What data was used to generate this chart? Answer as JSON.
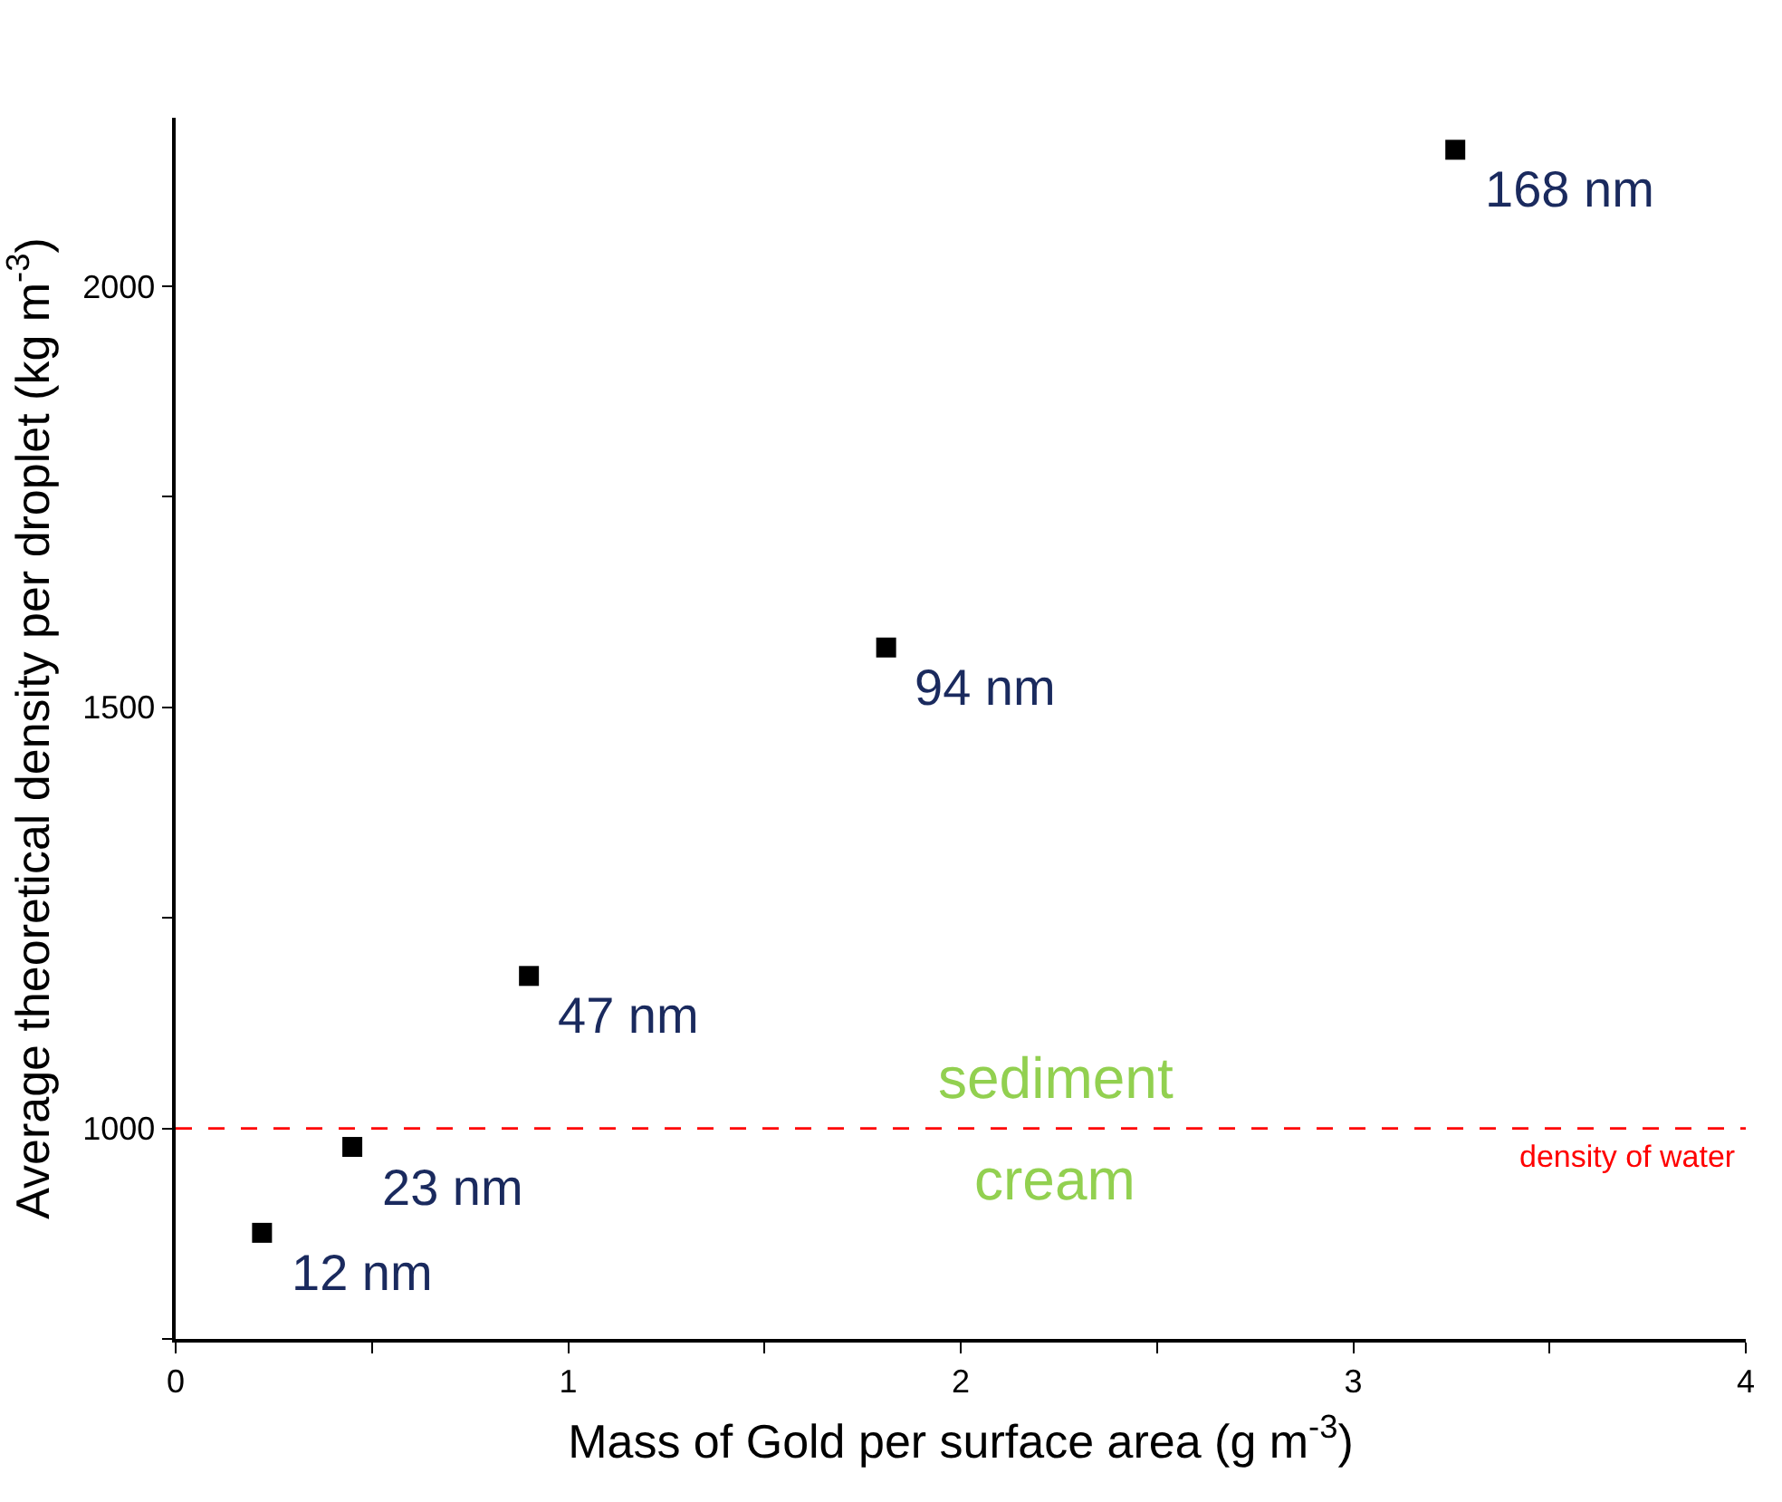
{
  "chart_data": {
    "type": "scatter",
    "xlabel": "Mass of Gold per surface area (g m$^{-3}$)",
    "ylabel": "Average theoretical density per droplet (kg m$^{-3}$)",
    "x": [
      0.22,
      0.45,
      0.9,
      1.81,
      3.26
    ],
    "series": [
      {
        "color": "#000000",
        "values": [
          876,
          978,
          1181,
          1571,
          2162
        ]
      }
    ],
    "marker": "square",
    "xlim": [
      0,
      4
    ],
    "xticks": [
      0,
      {
        "value": 0.5,
        "label": null
      },
      1,
      {
        "value": 1.5,
        "label": null
      },
      2,
      {
        "value": 2.5,
        "label": null
      },
      3,
      {
        "value": 3.5,
        "label": null
      },
      4
    ],
    "ylim": [
      750,
      2200
    ],
    "yticks": [
      {
        "value": 750,
        "label": null
      },
      1000,
      {
        "value": 1250,
        "label": null
      },
      1500,
      {
        "value": 1750,
        "label": null
      },
      2000
    ],
    "ref_lines": [
      {
        "axis": "y",
        "value": 1000,
        "label": "density of water",
        "color": "#ff0000",
        "line_style": "dashed"
      }
    ],
    "annotations": [
      {
        "text": "12 nm",
        "x": 0.22,
        "y": 876
      },
      {
        "text": "23 nm",
        "x": 0.45,
        "y": 978
      },
      {
        "text": "47 nm",
        "x": 0.9,
        "y": 1181
      },
      {
        "text": "94 nm",
        "x": 1.81,
        "y": 1571
      },
      {
        "text": "168 nm",
        "x": 3.26,
        "y": 2162
      },
      "sediment",
      "cream"
    ],
    "legend": false
  }
}
